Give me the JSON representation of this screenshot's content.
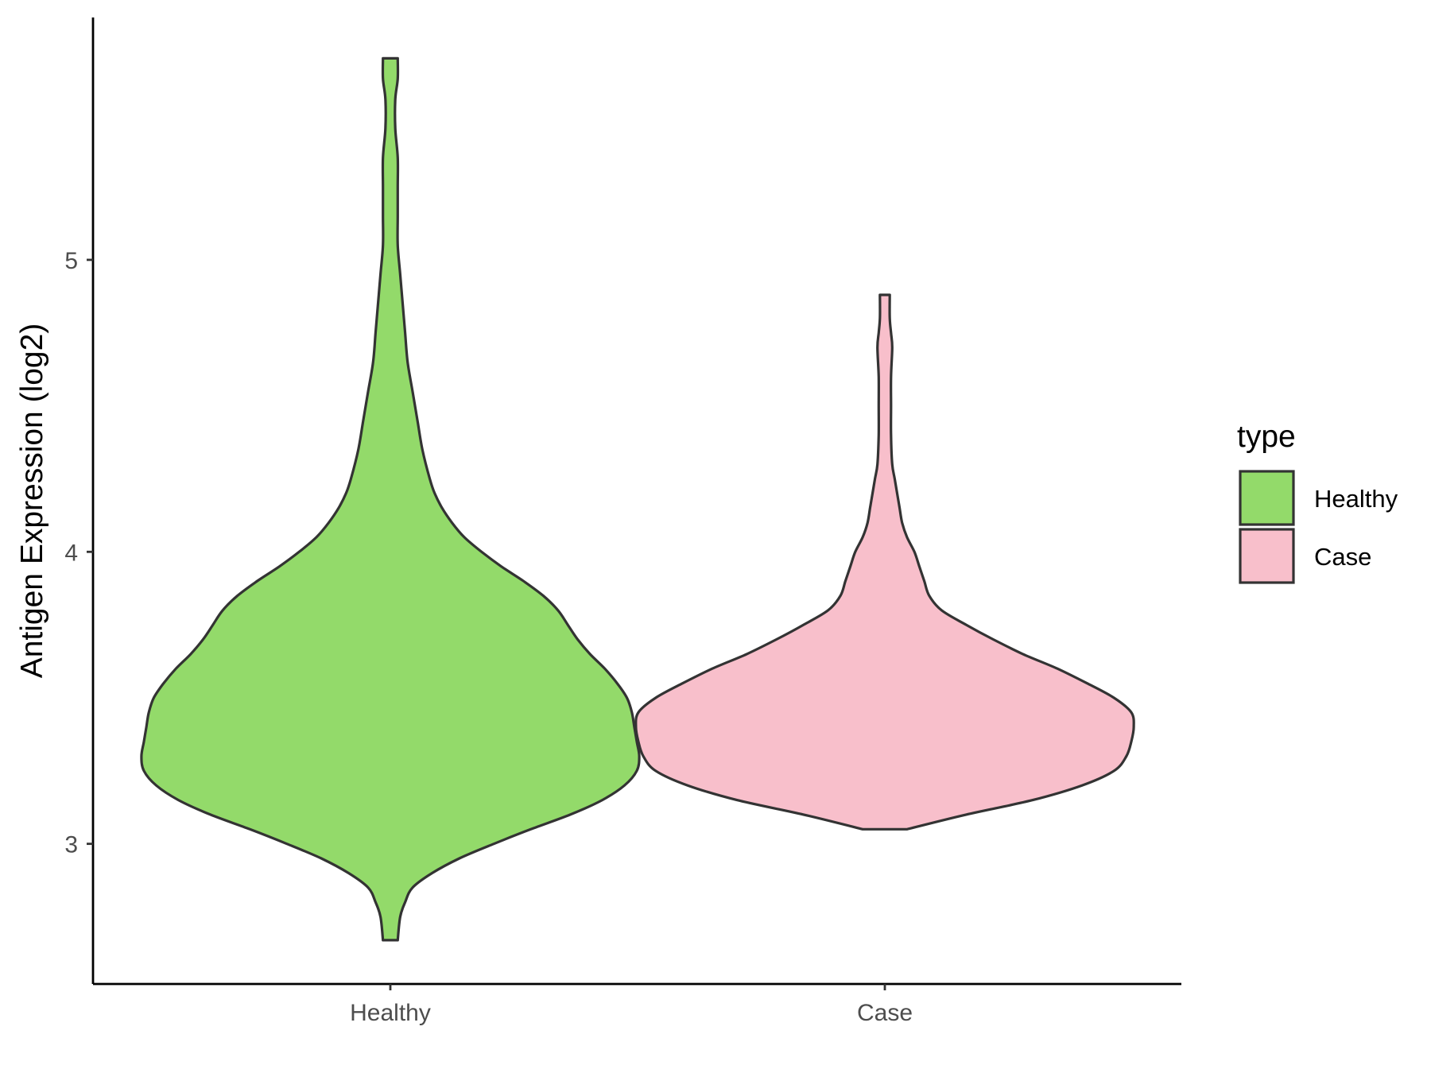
{
  "chart_data": {
    "type": "violin",
    "xlabel": "",
    "ylabel": "Antigen Expression (log2)",
    "categories": [
      "Healthy",
      "Case"
    ],
    "y_ticks": [
      3,
      4,
      5
    ],
    "ylim": [
      2.52,
      5.83
    ],
    "grid": false,
    "legend": {
      "title": "type",
      "placement": "right",
      "entries": [
        {
          "label": "Healthy",
          "color": "#93DA6A"
        },
        {
          "label": "Case",
          "color": "#F8BFCB"
        }
      ]
    },
    "series": [
      {
        "category": "Healthy",
        "color": "#93DA6A",
        "min": 2.67,
        "max": 5.69,
        "density_profile": [
          [
            2.67,
            0.03
          ],
          [
            2.75,
            0.04
          ],
          [
            2.8,
            0.06
          ],
          [
            2.85,
            0.09
          ],
          [
            2.9,
            0.17
          ],
          [
            2.95,
            0.28
          ],
          [
            3.0,
            0.42
          ],
          [
            3.05,
            0.57
          ],
          [
            3.1,
            0.73
          ],
          [
            3.15,
            0.86
          ],
          [
            3.2,
            0.95
          ],
          [
            3.25,
            1.0
          ],
          [
            3.3,
            1.01
          ],
          [
            3.35,
            1.0
          ],
          [
            3.4,
            0.99
          ],
          [
            3.45,
            0.98
          ],
          [
            3.5,
            0.96
          ],
          [
            3.55,
            0.92
          ],
          [
            3.6,
            0.87
          ],
          [
            3.65,
            0.81
          ],
          [
            3.7,
            0.76
          ],
          [
            3.75,
            0.72
          ],
          [
            3.8,
            0.68
          ],
          [
            3.85,
            0.62
          ],
          [
            3.9,
            0.54
          ],
          [
            3.95,
            0.45
          ],
          [
            4.0,
            0.37
          ],
          [
            4.05,
            0.3
          ],
          [
            4.1,
            0.25
          ],
          [
            4.15,
            0.21
          ],
          [
            4.2,
            0.18
          ],
          [
            4.25,
            0.16
          ],
          [
            4.35,
            0.13
          ],
          [
            4.45,
            0.11
          ],
          [
            4.55,
            0.09
          ],
          [
            4.65,
            0.07
          ],
          [
            4.75,
            0.06
          ],
          [
            4.85,
            0.05
          ],
          [
            4.95,
            0.04
          ],
          [
            5.05,
            0.03
          ],
          [
            5.15,
            0.03
          ],
          [
            5.25,
            0.03
          ],
          [
            5.35,
            0.03
          ],
          [
            5.45,
            0.02
          ],
          [
            5.55,
            0.02
          ],
          [
            5.62,
            0.03
          ],
          [
            5.69,
            0.03
          ]
        ]
      },
      {
        "category": "Case",
        "color": "#F8BFCB",
        "min": 3.05,
        "max": 4.88,
        "density_profile": [
          [
            3.05,
            0.09
          ],
          [
            3.1,
            0.33
          ],
          [
            3.15,
            0.6
          ],
          [
            3.2,
            0.8
          ],
          [
            3.25,
            0.93
          ],
          [
            3.3,
            0.98
          ],
          [
            3.35,
            1.0
          ],
          [
            3.4,
            1.01
          ],
          [
            3.45,
            1.0
          ],
          [
            3.5,
            0.93
          ],
          [
            3.55,
            0.82
          ],
          [
            3.6,
            0.7
          ],
          [
            3.65,
            0.56
          ],
          [
            3.7,
            0.44
          ],
          [
            3.75,
            0.33
          ],
          [
            3.8,
            0.23
          ],
          [
            3.85,
            0.18
          ],
          [
            3.9,
            0.16
          ],
          [
            3.95,
            0.14
          ],
          [
            4.0,
            0.12
          ],
          [
            4.05,
            0.09
          ],
          [
            4.1,
            0.07
          ],
          [
            4.15,
            0.06
          ],
          [
            4.2,
            0.05
          ],
          [
            4.25,
            0.04
          ],
          [
            4.3,
            0.03
          ],
          [
            4.4,
            0.025
          ],
          [
            4.5,
            0.025
          ],
          [
            4.6,
            0.025
          ],
          [
            4.7,
            0.03
          ],
          [
            4.75,
            0.025
          ],
          [
            4.8,
            0.02
          ],
          [
            4.88,
            0.02
          ]
        ]
      }
    ]
  }
}
